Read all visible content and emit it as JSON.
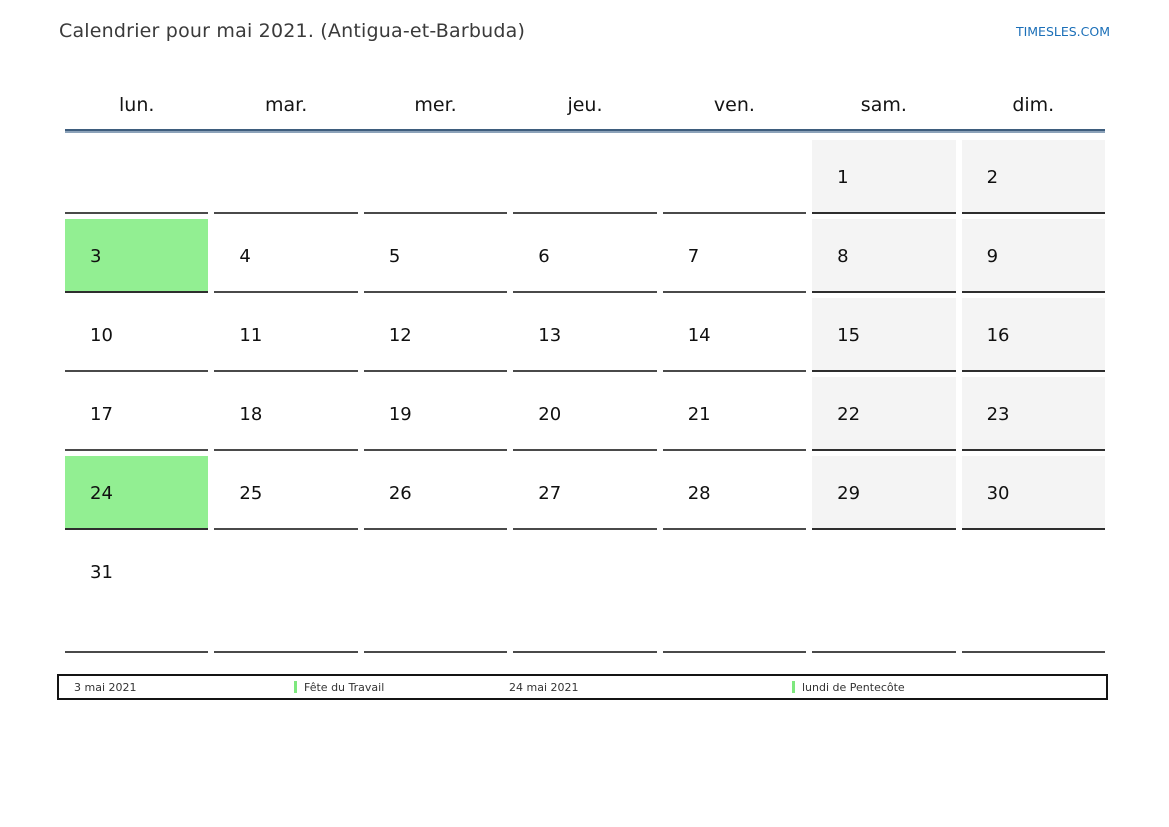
{
  "header": {
    "title": "Calendrier pour mai 2021. (Antigua-et-Barbuda)",
    "site_link": "TIMESLES.COM"
  },
  "calendar": {
    "weekdays": [
      "lun.",
      "mar.",
      "mer.",
      "jeu.",
      "ven.",
      "sam.",
      "dim."
    ],
    "weeks": [
      [
        null,
        null,
        null,
        null,
        null,
        1,
        2
      ],
      [
        3,
        4,
        5,
        6,
        7,
        8,
        9
      ],
      [
        10,
        11,
        12,
        13,
        14,
        15,
        16
      ],
      [
        17,
        18,
        19,
        20,
        21,
        22,
        23
      ],
      [
        24,
        25,
        26,
        27,
        28,
        29,
        30
      ],
      [
        31,
        null,
        null,
        null,
        null,
        null,
        null
      ]
    ],
    "highlighted_days": [
      3,
      24
    ],
    "weekend_column_indexes": [
      5,
      6
    ]
  },
  "legend": {
    "entries": [
      {
        "date": "3 mai 2021",
        "label": "Fête du Travail"
      },
      {
        "date": "24 mai 2021",
        "label": "lundi de Pentecôte"
      }
    ]
  },
  "colors": {
    "holiday_cell_green": "#92ef92",
    "legend_marker_green": "#7ee87e",
    "weekend_cell_gray": "#f4f4f4",
    "link_blue": "#1b6fb8",
    "header_rule_blue": "#3e5d7d"
  }
}
